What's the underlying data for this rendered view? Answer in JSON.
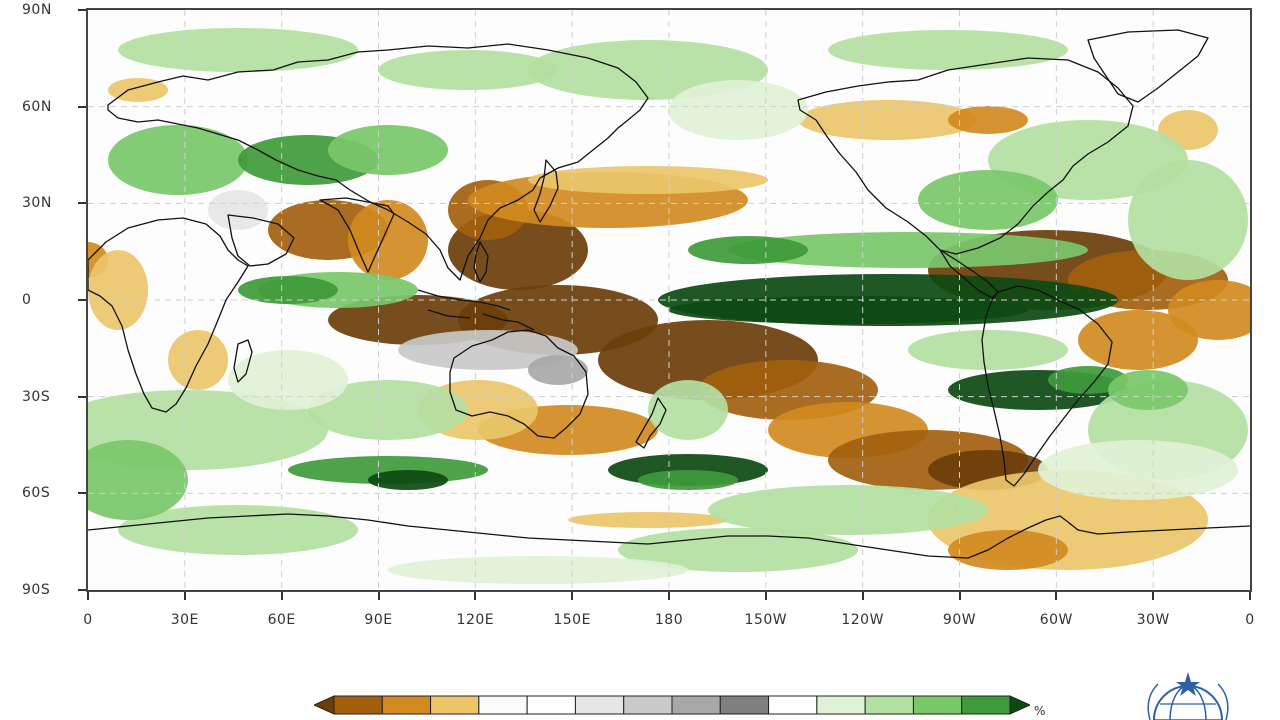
{
  "map": {
    "lat_labels": [
      "90N",
      "60N",
      "30N",
      "0",
      "30S",
      "60S",
      "90S"
    ],
    "lon_labels": [
      "0",
      "30E",
      "60E",
      "90E",
      "120E",
      "150E",
      "180",
      "150W",
      "120W",
      "90W",
      "60W",
      "30W",
      "0"
    ],
    "background_color": "#fdfdfd",
    "coast_color": "#111111",
    "grid_color": "#cfcfcf"
  },
  "colorbar": {
    "colors": [
      "#6b3e0a",
      "#a35f0d",
      "#d18a1f",
      "#ecc56a",
      "#fbfbfb",
      "#ffffff",
      "#e6e6e6",
      "#c9c9c9",
      "#a8a8a8",
      "#7f7f7f",
      "#ffffff",
      "#dff2d6",
      "#b2e0a1",
      "#7ac76a",
      "#3f9a3a",
      "#0d4a12"
    ],
    "unit": "%"
  },
  "logo": {
    "icon": "wmo-emblem-icon"
  }
}
